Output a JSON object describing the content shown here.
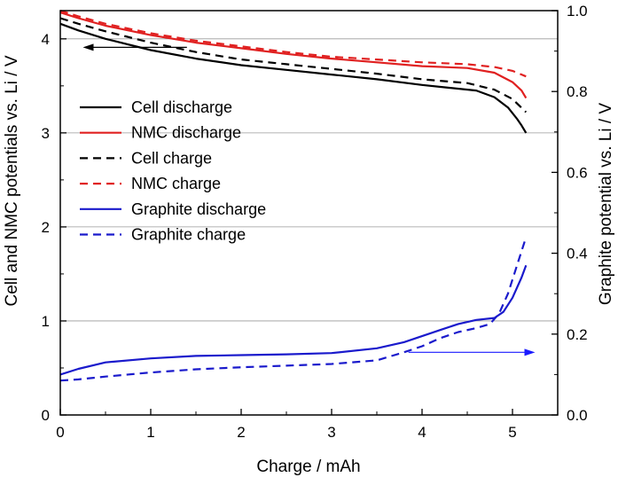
{
  "chart_data": {
    "type": "line",
    "title": "",
    "xlabel": "Charge / mAh",
    "ylabel_left": "Cell and NMC potentials vs. Li / V",
    "ylabel_right": "Graphite potential vs. Li / V",
    "xlim": [
      0,
      5.5
    ],
    "ylim_left": [
      0,
      4.3
    ],
    "ylim_right": [
      0,
      1.0
    ],
    "xticks": [
      0,
      1,
      2,
      3,
      4,
      5
    ],
    "yticks_left": [
      0,
      1,
      2,
      3,
      4
    ],
    "yticks_right": [
      "0.0",
      "0.2",
      "0.4",
      "0.6",
      "0.8",
      "1.0"
    ],
    "grid": "horizontal",
    "legend_position": "left-center",
    "arrows": [
      {
        "points_to": "left-axis",
        "x_from": 1.4,
        "x_to": 0.25,
        "y": 3.91,
        "color": "#000000"
      },
      {
        "points_to": "right-axis",
        "x_from": 3.85,
        "x_to": 5.25,
        "y": 0.155,
        "color": "#1a1aff"
      }
    ],
    "series": [
      {
        "name": "Cell discharge",
        "axis": "left",
        "color": "#000000",
        "dash": "solid",
        "x": [
          0,
          0.2,
          0.5,
          1.0,
          1.5,
          2.0,
          2.5,
          3.0,
          3.5,
          4.0,
          4.3,
          4.6,
          4.8,
          4.95,
          5.05,
          5.1,
          5.15
        ],
        "y": [
          4.16,
          4.09,
          4.0,
          3.88,
          3.79,
          3.72,
          3.67,
          3.62,
          3.57,
          3.51,
          3.48,
          3.45,
          3.38,
          3.27,
          3.15,
          3.08,
          3.0
        ]
      },
      {
        "name": "NMC discharge",
        "axis": "left",
        "color": "#e02020",
        "dash": "solid",
        "x": [
          0,
          0.2,
          0.5,
          1.0,
          1.5,
          2.0,
          2.5,
          3.0,
          3.5,
          4.0,
          4.5,
          4.8,
          5.0,
          5.1,
          5.15
        ],
        "y": [
          4.28,
          4.22,
          4.14,
          4.04,
          3.96,
          3.9,
          3.84,
          3.79,
          3.75,
          3.71,
          3.69,
          3.64,
          3.54,
          3.45,
          3.37
        ]
      },
      {
        "name": "Cell charge",
        "axis": "left",
        "color": "#000000",
        "dash": "dashed",
        "x": [
          0,
          0.2,
          0.5,
          1.0,
          1.5,
          2.0,
          2.5,
          3.0,
          3.5,
          4.0,
          4.5,
          4.8,
          5.0,
          5.15
        ],
        "y": [
          4.22,
          4.16,
          4.08,
          3.96,
          3.86,
          3.78,
          3.73,
          3.68,
          3.63,
          3.57,
          3.53,
          3.46,
          3.36,
          3.22
        ]
      },
      {
        "name": "NMC charge",
        "axis": "left",
        "color": "#e02020",
        "dash": "dashed",
        "x": [
          0,
          0.2,
          0.5,
          1.0,
          1.5,
          2.0,
          2.5,
          3.0,
          3.5,
          4.0,
          4.5,
          4.8,
          5.0,
          5.15
        ],
        "y": [
          4.3,
          4.24,
          4.16,
          4.06,
          3.98,
          3.92,
          3.86,
          3.81,
          3.78,
          3.75,
          3.73,
          3.7,
          3.66,
          3.6
        ]
      },
      {
        "name": "Graphite discharge",
        "axis": "right",
        "color": "#1a1acc",
        "dash": "solid",
        "x": [
          0,
          0.2,
          0.5,
          1.0,
          1.5,
          2.0,
          2.5,
          3.0,
          3.5,
          3.8,
          4.0,
          4.2,
          4.4,
          4.6,
          4.8,
          4.9,
          5.0,
          5.1,
          5.15
        ],
        "y": [
          0.1,
          0.114,
          0.13,
          0.14,
          0.146,
          0.148,
          0.15,
          0.153,
          0.165,
          0.18,
          0.195,
          0.21,
          0.225,
          0.235,
          0.24,
          0.255,
          0.29,
          0.34,
          0.37
        ]
      },
      {
        "name": "Graphite charge",
        "axis": "right",
        "color": "#1a1acc",
        "dash": "dashed",
        "x": [
          0,
          0.2,
          0.5,
          1.0,
          1.5,
          2.0,
          2.5,
          3.0,
          3.5,
          3.8,
          4.0,
          4.2,
          4.4,
          4.6,
          4.75,
          4.85,
          4.95,
          5.05,
          5.15
        ],
        "y": [
          0.085,
          0.088,
          0.095,
          0.105,
          0.113,
          0.118,
          0.122,
          0.126,
          0.135,
          0.155,
          0.17,
          0.19,
          0.205,
          0.215,
          0.225,
          0.25,
          0.3,
          0.37,
          0.44
        ]
      }
    ]
  }
}
